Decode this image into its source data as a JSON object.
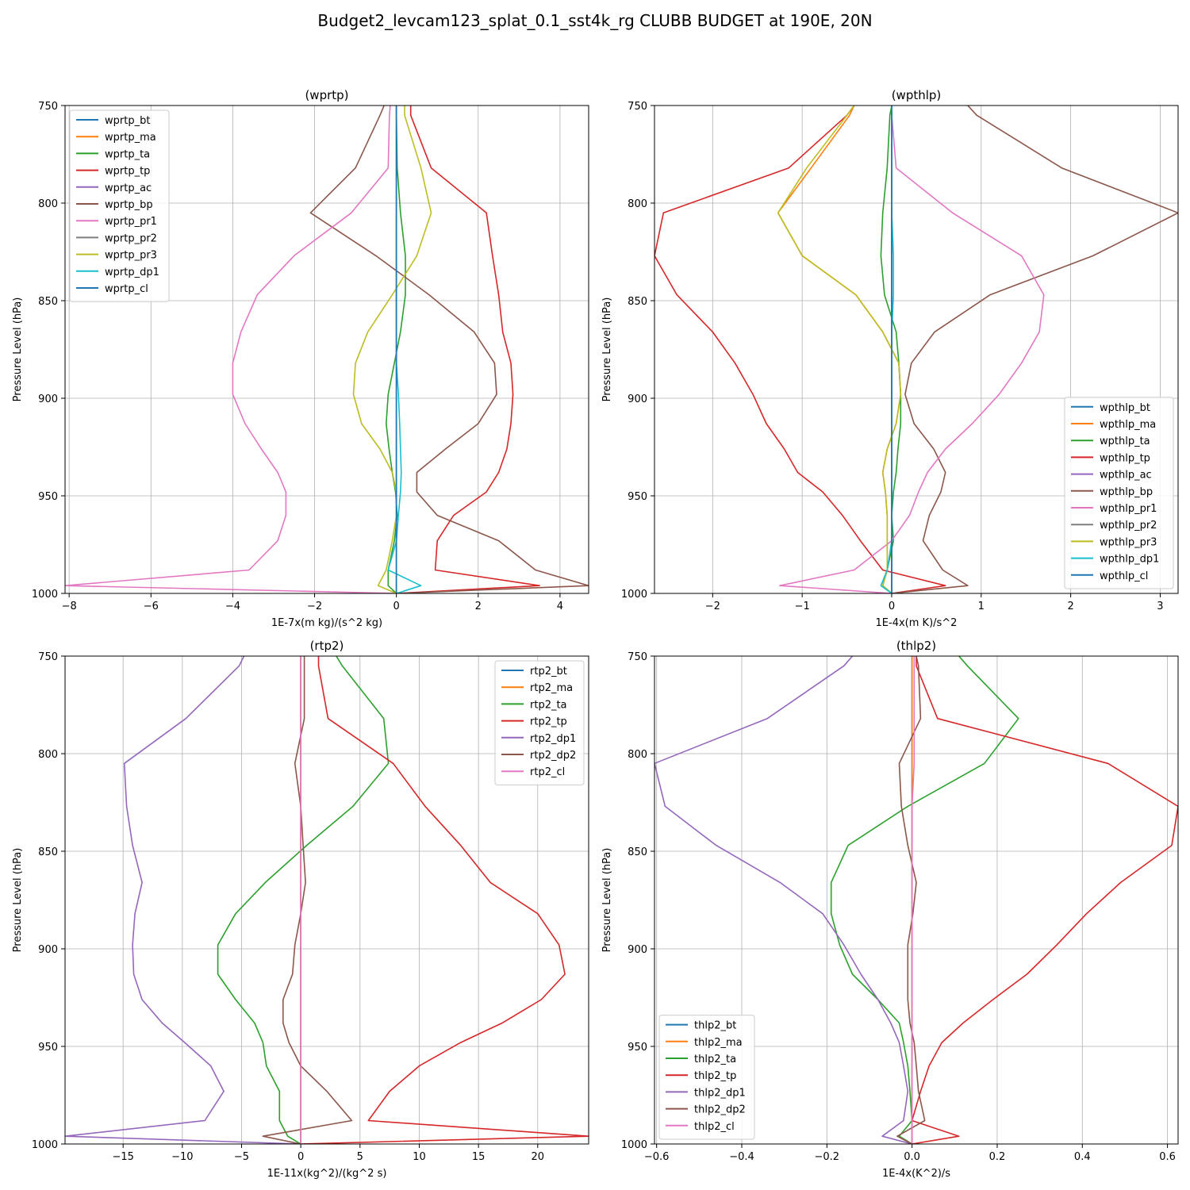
{
  "figure": {
    "title": "Budget2_levcam123_splat_0.1_sst4k_rg CLUBB BUDGET at 190E, 20N"
  },
  "colors": {
    "bt": "#1f77b4",
    "ma": "#ff7f0e",
    "ta": "#2ca02c",
    "tp": "#d62728",
    "ac": "#9467bd",
    "bp": "#8c564b",
    "pr1": "#e377c2",
    "pr2": "#7f7f7f",
    "pr3": "#bcbd22",
    "dp1": "#17becf",
    "cl": "#1f77b4"
  },
  "chart_data": [
    {
      "type": "line",
      "title": "(wprtp)",
      "xlabel": "1E-7x(m kg)/(s^2 kg)",
      "ylabel": "Pressure Level (hPa)",
      "xlim": [
        -8.1,
        4.7
      ],
      "ylim": [
        1000,
        750
      ],
      "xticks": [
        -8,
        -6,
        -4,
        -2,
        0,
        2,
        4
      ],
      "xtick_labels": [
        "−8",
        "−6",
        "−4",
        "−2",
        "0",
        "2",
        "4"
      ],
      "yticks": [
        750,
        800,
        850,
        900,
        950,
        1000
      ],
      "grid": true,
      "legend_position": "upper-left",
      "levels": [
        750,
        755,
        782,
        805,
        827,
        847,
        866,
        882,
        898,
        913,
        926,
        938,
        948,
        960,
        973,
        988,
        996,
        1000
      ],
      "series": [
        {
          "name": "wprtp_bt",
          "color_key": "bt",
          "values": [
            0,
            0,
            0,
            0,
            0,
            0,
            0,
            0,
            0,
            0,
            0,
            0,
            0,
            0,
            0,
            0,
            0,
            0
          ]
        },
        {
          "name": "wprtp_ma",
          "color_key": "ma",
          "values": [
            0,
            0,
            0,
            0,
            0,
            0,
            0,
            0,
            0,
            0,
            0,
            0,
            0,
            0,
            0,
            0,
            0,
            0
          ]
        },
        {
          "name": "wprtp_ta",
          "color_key": "ta",
          "values": [
            0,
            0,
            0.02,
            0.1,
            0.22,
            0.22,
            0.1,
            -0.05,
            -0.2,
            -0.25,
            -0.18,
            -0.1,
            -0.02,
            0.02,
            -0.05,
            -0.2,
            -0.2,
            0
          ]
        },
        {
          "name": "wprtp_tp",
          "color_key": "tp",
          "values": [
            0.35,
            0.35,
            0.85,
            2.2,
            2.35,
            2.5,
            2.6,
            2.8,
            2.85,
            2.8,
            2.7,
            2.5,
            2.2,
            1.4,
            1.0,
            0.95,
            3.5,
            0
          ]
        },
        {
          "name": "wprtp_ac",
          "color_key": "ac",
          "values": [
            0,
            0,
            0,
            0,
            0,
            0,
            0,
            0,
            0,
            0,
            0,
            0,
            0,
            0,
            0,
            0,
            0,
            0
          ]
        },
        {
          "name": "wprtp_bp",
          "color_key": "bp",
          "values": [
            -0.3,
            -0.4,
            -1.0,
            -2.1,
            -0.5,
            0.8,
            1.9,
            2.4,
            2.45,
            2.0,
            1.2,
            0.5,
            0.5,
            1.0,
            2.5,
            3.4,
            4.7,
            0
          ]
        },
        {
          "name": "wprtp_pr1",
          "color_key": "pr1",
          "values": [
            -0.15,
            -0.17,
            -0.2,
            -1.1,
            -2.5,
            -3.4,
            -3.8,
            -4.0,
            -4.0,
            -3.7,
            -3.3,
            -2.9,
            -2.7,
            -2.7,
            -2.9,
            -3.6,
            -8.1,
            0
          ]
        },
        {
          "name": "wprtp_pr2",
          "color_key": "pr2",
          "values": [
            0,
            0,
            0,
            0,
            0,
            0,
            0,
            0,
            0,
            0,
            0,
            0,
            0,
            0,
            0,
            0,
            0,
            0
          ]
        },
        {
          "name": "wprtp_pr3",
          "color_key": "pr3",
          "values": [
            0.2,
            0.2,
            0.6,
            0.85,
            0.5,
            -0.1,
            -0.7,
            -1.0,
            -1.05,
            -0.85,
            -0.4,
            -0.1,
            0,
            0,
            -0.1,
            -0.25,
            -0.45,
            0
          ]
        },
        {
          "name": "wprtp_dp1",
          "color_key": "dp1",
          "values": [
            0,
            0,
            0,
            0,
            0,
            0,
            0,
            0,
            0.05,
            0.08,
            0.1,
            0.12,
            0.1,
            0.05,
            0,
            -0.2,
            0.6,
            0
          ]
        },
        {
          "name": "wprtp_cl",
          "color_key": "cl",
          "values": [
            0,
            0,
            0,
            0,
            0,
            0,
            0,
            0,
            0,
            0,
            0,
            0,
            0,
            0,
            0,
            0,
            0,
            0
          ]
        }
      ]
    },
    {
      "type": "line",
      "title": "(wpthlp)",
      "xlabel": "1E-4x(m K)/s^2",
      "ylabel": "Pressure Level (hPa)",
      "xlim": [
        -2.65,
        3.2
      ],
      "ylim": [
        1000,
        750
      ],
      "xticks": [
        -2,
        -1,
        0,
        1,
        2,
        3
      ],
      "xtick_labels": [
        "−2",
        "−1",
        "0",
        "1",
        "2",
        "3"
      ],
      "yticks": [
        750,
        800,
        850,
        900,
        950,
        1000
      ],
      "grid": true,
      "legend_position": "lower-right",
      "levels": [
        750,
        755,
        782,
        805,
        827,
        847,
        866,
        882,
        898,
        913,
        926,
        938,
        948,
        960,
        973,
        988,
        996,
        1000
      ],
      "series": [
        {
          "name": "wpthlp_bt",
          "color_key": "bt",
          "values": [
            0,
            0,
            0,
            0,
            0,
            0,
            0,
            0,
            0,
            0,
            0,
            0,
            0,
            0,
            0,
            0,
            0,
            0
          ]
        },
        {
          "name": "wpthlp_ma",
          "color_key": "ma",
          "values": [
            -0.42,
            -0.47,
            -0.9,
            -1.27,
            -1.0,
            -0.4,
            -0.1,
            0.08,
            0.1,
            0.05,
            -0.05,
            -0.1,
            -0.07,
            -0.05,
            -0.05,
            -0.05,
            -0.1,
            0
          ]
        },
        {
          "name": "wpthlp_ta",
          "color_key": "ta",
          "values": [
            0,
            -0.02,
            -0.05,
            -0.1,
            -0.12,
            -0.08,
            0.05,
            0.08,
            0.1,
            0.1,
            0.07,
            0.05,
            0.02,
            0,
            0.02,
            -0.05,
            -0.1,
            0
          ]
        },
        {
          "name": "wpthlp_tp",
          "color_key": "tp",
          "values": [
            -0.42,
            -0.5,
            -1.15,
            -2.55,
            -2.65,
            -2.4,
            -2.0,
            -1.75,
            -1.55,
            -1.4,
            -1.2,
            -1.05,
            -0.77,
            -0.55,
            -0.35,
            -0.1,
            0.6,
            0
          ]
        },
        {
          "name": "wpthlp_ac",
          "color_key": "ac",
          "values": [
            0,
            0,
            0,
            0,
            0,
            0,
            0,
            0,
            0,
            0,
            0,
            0,
            0,
            0,
            0,
            0,
            0,
            0
          ]
        },
        {
          "name": "wpthlp_bp",
          "color_key": "bp",
          "values": [
            0.85,
            0.95,
            1.9,
            3.2,
            2.25,
            1.1,
            0.48,
            0.22,
            0.15,
            0.25,
            0.47,
            0.6,
            0.55,
            0.42,
            0.35,
            0.57,
            0.85,
            0
          ]
        },
        {
          "name": "wpthlp_pr1",
          "color_key": "pr1",
          "values": [
            0,
            0,
            0.05,
            0.68,
            1.45,
            1.7,
            1.65,
            1.45,
            1.2,
            0.9,
            0.6,
            0.4,
            0.3,
            0.2,
            0,
            -0.42,
            -1.25,
            0
          ]
        },
        {
          "name": "wpthlp_pr2",
          "color_key": "pr2",
          "values": [
            0,
            0,
            0,
            0,
            0,
            0,
            0,
            0,
            0,
            0,
            0,
            0,
            0,
            0,
            0,
            0,
            0,
            0
          ]
        },
        {
          "name": "wpthlp_pr3",
          "color_key": "pr3",
          "values": [
            -0.42,
            -0.5,
            -0.95,
            -1.27,
            -1.0,
            -0.4,
            -0.1,
            0.08,
            0.1,
            0.05,
            -0.05,
            -0.1,
            -0.07,
            -0.05,
            -0.05,
            -0.05,
            -0.1,
            0
          ]
        },
        {
          "name": "wpthlp_dp1",
          "color_key": "dp1",
          "values": [
            0,
            0,
            0,
            0,
            0.02,
            0.02,
            0,
            0,
            0,
            0,
            0,
            0,
            0,
            0,
            0,
            -0.05,
            -0.12,
            0
          ]
        },
        {
          "name": "wpthlp_cl",
          "color_key": "cl",
          "values": [
            0,
            0,
            0,
            0,
            0,
            0,
            0,
            0,
            0,
            0,
            0,
            0,
            0,
            0,
            0,
            0,
            0,
            0
          ]
        }
      ]
    },
    {
      "type": "line",
      "title": "(rtp2)",
      "xlabel": "1E-11x(kg^2)/(kg^2 s)",
      "ylabel": "Pressure Level (hPa)",
      "xlim": [
        -19.9,
        24.3
      ],
      "ylim": [
        1000,
        750
      ],
      "xticks": [
        -15,
        -10,
        -5,
        0,
        5,
        10,
        15,
        20
      ],
      "xtick_labels": [
        "−15",
        "−10",
        "−5",
        "0",
        "5",
        "10",
        "15",
        "20"
      ],
      "yticks": [
        750,
        800,
        850,
        900,
        950,
        1000
      ],
      "grid": true,
      "legend_position": "upper-right",
      "levels": [
        750,
        755,
        782,
        805,
        827,
        847,
        866,
        882,
        898,
        913,
        926,
        938,
        948,
        960,
        973,
        988,
        996,
        1000
      ],
      "series": [
        {
          "name": "rtp2_bt",
          "color_key": "bt",
          "values": [
            0,
            0,
            0,
            0,
            0,
            0,
            0,
            0,
            0,
            0,
            0,
            0,
            0,
            0,
            0,
            0,
            0,
            0
          ]
        },
        {
          "name": "rtp2_ma",
          "color_key": "ma",
          "values": [
            0,
            0,
            0,
            0,
            0,
            0,
            0,
            0,
            0,
            0,
            0,
            0,
            0,
            0,
            0,
            0,
            0,
            0
          ]
        },
        {
          "name": "rtp2_ta",
          "color_key": "ta",
          "values": [
            3.0,
            3.5,
            7.0,
            7.4,
            4.4,
            0.5,
            -3.0,
            -5.5,
            -7.0,
            -7.0,
            -5.5,
            -3.9,
            -3.2,
            -2.9,
            -1.8,
            -1.8,
            -1.1,
            0
          ]
        },
        {
          "name": "rtp2_tp",
          "color_key": "tp",
          "values": [
            1.5,
            1.5,
            2.3,
            7.8,
            10.5,
            13.5,
            16.0,
            20.0,
            21.8,
            22.3,
            20.3,
            17.0,
            13.5,
            10.0,
            7.5,
            5.7,
            24.3,
            0
          ]
        },
        {
          "name": "rtp2_dp1",
          "color_key": "ac",
          "values": [
            -4.8,
            -5.2,
            -9.7,
            -14.9,
            -14.7,
            -14.2,
            -13.4,
            -14.0,
            -14.2,
            -14.1,
            -13.4,
            -11.7,
            -9.8,
            -7.6,
            -6.5,
            -8.1,
            -19.9,
            0
          ]
        },
        {
          "name": "rtp2_dp2",
          "color_key": "bp",
          "values": [
            0.3,
            0.3,
            0.3,
            -0.5,
            0,
            0.2,
            0.4,
            0,
            -0.5,
            -0.7,
            -1.5,
            -1.5,
            -1.0,
            0,
            2.2,
            4.3,
            -3.2,
            0
          ]
        },
        {
          "name": "rtp2_cl",
          "color_key": "pr1",
          "values": [
            0,
            0,
            0,
            0,
            0,
            0,
            0,
            0,
            0,
            0,
            0,
            0,
            0,
            0,
            0,
            0,
            0,
            0
          ]
        }
      ]
    },
    {
      "type": "line",
      "title": "(thlp2)",
      "xlabel": "1E-4x(K^2)/s",
      "ylabel": "Pressure Level (hPa)",
      "xlim": [
        -0.605,
        0.625
      ],
      "ylim": [
        1000,
        750
      ],
      "xticks": [
        -0.6,
        -0.4,
        -0.2,
        0.0,
        0.2,
        0.4,
        0.6
      ],
      "xtick_labels": [
        "−0.6",
        "−0.4",
        "−0.2",
        "0.0",
        "0.2",
        "0.4",
        "0.6"
      ],
      "yticks": [
        750,
        800,
        850,
        900,
        950,
        1000
      ],
      "grid": true,
      "legend_position": "lower-left",
      "levels": [
        750,
        755,
        782,
        805,
        827,
        847,
        866,
        882,
        898,
        913,
        926,
        938,
        948,
        960,
        973,
        988,
        996,
        1000
      ],
      "series": [
        {
          "name": "thlp2_bt",
          "color_key": "bt",
          "values": [
            0,
            0,
            0,
            0,
            0,
            0,
            0,
            0,
            0,
            0,
            0,
            0,
            0,
            0,
            0,
            0,
            0,
            0
          ]
        },
        {
          "name": "thlp2_ma",
          "color_key": "ma",
          "values": [
            0,
            0,
            0,
            0,
            0,
            0,
            0,
            0,
            0,
            0,
            0,
            0,
            0,
            0,
            0,
            0,
            0,
            0
          ]
        },
        {
          "name": "thlp2_ta",
          "color_key": "ta",
          "values": [
            0.11,
            0.13,
            0.25,
            0.17,
            -0.01,
            -0.15,
            -0.19,
            -0.19,
            -0.17,
            -0.14,
            -0.08,
            -0.03,
            -0.02,
            -0.01,
            -0.005,
            0,
            -0.03,
            0
          ]
        },
        {
          "name": "thlp2_tp",
          "color_key": "tp",
          "values": [
            0.01,
            0.01,
            0.06,
            0.46,
            0.625,
            0.61,
            0.49,
            0.41,
            0.34,
            0.27,
            0.19,
            0.12,
            0.07,
            0.04,
            0.02,
            0,
            0.11,
            0
          ]
        },
        {
          "name": "thlp2_dp1",
          "color_key": "ac",
          "values": [
            -0.14,
            -0.16,
            -0.34,
            -0.605,
            -0.58,
            -0.46,
            -0.31,
            -0.21,
            -0.16,
            -0.12,
            -0.08,
            -0.05,
            -0.03,
            -0.02,
            -0.01,
            -0.02,
            -0.07,
            0
          ]
        },
        {
          "name": "thlp2_dp2",
          "color_key": "bp",
          "values": [
            0.01,
            0.015,
            0.02,
            -0.03,
            -0.025,
            -0.01,
            0.01,
            0.002,
            -0.01,
            -0.01,
            -0.01,
            -0.005,
            0.005,
            0.01,
            0.015,
            0.03,
            -0.035,
            0
          ]
        },
        {
          "name": "thlp2_cl",
          "color_key": "pr1",
          "values": [
            0.005,
            0.005,
            0.005,
            0.005,
            0,
            0,
            0,
            0,
            0,
            0,
            0,
            0,
            0,
            0,
            0,
            0,
            0,
            0
          ]
        }
      ]
    }
  ]
}
